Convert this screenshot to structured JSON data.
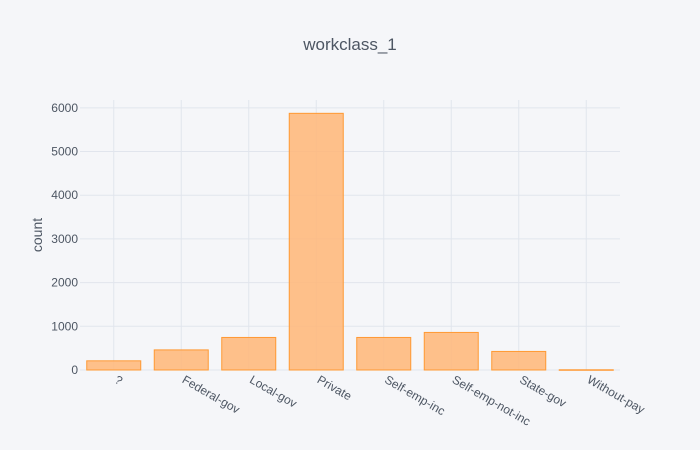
{
  "chart_data": {
    "type": "bar",
    "title": "workclass_1",
    "xlabel": "",
    "ylabel": "count",
    "categories": [
      "?",
      "Federal-gov",
      "Local-gov",
      "Private",
      "Self-emp-inc",
      "Self-emp-not-inc",
      "State-gov",
      "Without-pay"
    ],
    "values": [
      210,
      460,
      745,
      5875,
      745,
      860,
      425,
      5
    ],
    "ylim": [
      0,
      6180
    ],
    "yticks": [
      0,
      1000,
      2000,
      3000,
      4000,
      5000,
      6000
    ],
    "ytick_labels": [
      "0",
      "1000",
      "2000",
      "3000",
      "4000",
      "5000",
      "6000"
    ],
    "grid": true,
    "colors": {
      "background": "#f5f6f9",
      "grid": "#e1e5ed",
      "bar_fill": "#ffb677",
      "bar_stroke": "#ff9933",
      "text": "#4d5663"
    }
  }
}
